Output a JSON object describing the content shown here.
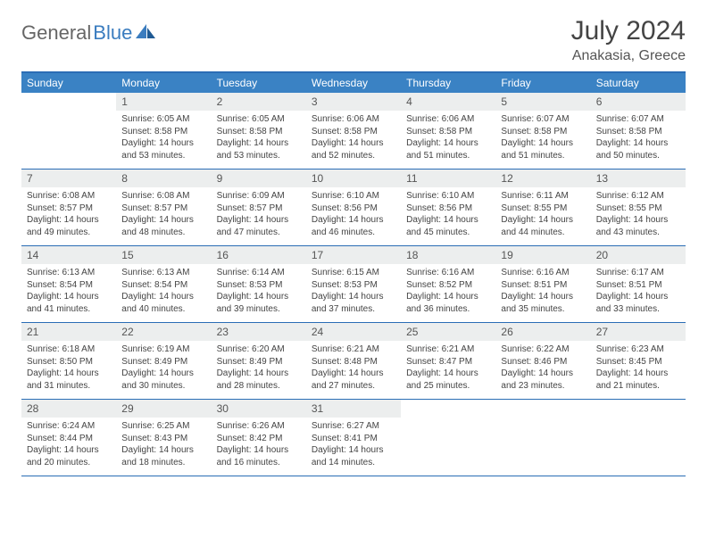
{
  "brand": {
    "part1": "General",
    "part2": "Blue"
  },
  "title": "July 2024",
  "location": "Anakasia, Greece",
  "colors": {
    "header_bg": "#3a82c4",
    "header_text": "#ffffff",
    "border": "#2a6db5",
    "daynum_bg": "#eceeee",
    "body_text": "#444444",
    "brand_gray": "#666666",
    "brand_blue": "#3a7cbf"
  },
  "day_names": [
    "Sunday",
    "Monday",
    "Tuesday",
    "Wednesday",
    "Thursday",
    "Friday",
    "Saturday"
  ],
  "calendar": {
    "first_weekday_index": 1,
    "days_in_month": 31
  },
  "days": {
    "1": {
      "sunrise": "6:05 AM",
      "sunset": "8:58 PM",
      "daylight": "14 hours and 53 minutes."
    },
    "2": {
      "sunrise": "6:05 AM",
      "sunset": "8:58 PM",
      "daylight": "14 hours and 53 minutes."
    },
    "3": {
      "sunrise": "6:06 AM",
      "sunset": "8:58 PM",
      "daylight": "14 hours and 52 minutes."
    },
    "4": {
      "sunrise": "6:06 AM",
      "sunset": "8:58 PM",
      "daylight": "14 hours and 51 minutes."
    },
    "5": {
      "sunrise": "6:07 AM",
      "sunset": "8:58 PM",
      "daylight": "14 hours and 51 minutes."
    },
    "6": {
      "sunrise": "6:07 AM",
      "sunset": "8:58 PM",
      "daylight": "14 hours and 50 minutes."
    },
    "7": {
      "sunrise": "6:08 AM",
      "sunset": "8:57 PM",
      "daylight": "14 hours and 49 minutes."
    },
    "8": {
      "sunrise": "6:08 AM",
      "sunset": "8:57 PM",
      "daylight": "14 hours and 48 minutes."
    },
    "9": {
      "sunrise": "6:09 AM",
      "sunset": "8:57 PM",
      "daylight": "14 hours and 47 minutes."
    },
    "10": {
      "sunrise": "6:10 AM",
      "sunset": "8:56 PM",
      "daylight": "14 hours and 46 minutes."
    },
    "11": {
      "sunrise": "6:10 AM",
      "sunset": "8:56 PM",
      "daylight": "14 hours and 45 minutes."
    },
    "12": {
      "sunrise": "6:11 AM",
      "sunset": "8:55 PM",
      "daylight": "14 hours and 44 minutes."
    },
    "13": {
      "sunrise": "6:12 AM",
      "sunset": "8:55 PM",
      "daylight": "14 hours and 43 minutes."
    },
    "14": {
      "sunrise": "6:13 AM",
      "sunset": "8:54 PM",
      "daylight": "14 hours and 41 minutes."
    },
    "15": {
      "sunrise": "6:13 AM",
      "sunset": "8:54 PM",
      "daylight": "14 hours and 40 minutes."
    },
    "16": {
      "sunrise": "6:14 AM",
      "sunset": "8:53 PM",
      "daylight": "14 hours and 39 minutes."
    },
    "17": {
      "sunrise": "6:15 AM",
      "sunset": "8:53 PM",
      "daylight": "14 hours and 37 minutes."
    },
    "18": {
      "sunrise": "6:16 AM",
      "sunset": "8:52 PM",
      "daylight": "14 hours and 36 minutes."
    },
    "19": {
      "sunrise": "6:16 AM",
      "sunset": "8:51 PM",
      "daylight": "14 hours and 35 minutes."
    },
    "20": {
      "sunrise": "6:17 AM",
      "sunset": "8:51 PM",
      "daylight": "14 hours and 33 minutes."
    },
    "21": {
      "sunrise": "6:18 AM",
      "sunset": "8:50 PM",
      "daylight": "14 hours and 31 minutes."
    },
    "22": {
      "sunrise": "6:19 AM",
      "sunset": "8:49 PM",
      "daylight": "14 hours and 30 minutes."
    },
    "23": {
      "sunrise": "6:20 AM",
      "sunset": "8:49 PM",
      "daylight": "14 hours and 28 minutes."
    },
    "24": {
      "sunrise": "6:21 AM",
      "sunset": "8:48 PM",
      "daylight": "14 hours and 27 minutes."
    },
    "25": {
      "sunrise": "6:21 AM",
      "sunset": "8:47 PM",
      "daylight": "14 hours and 25 minutes."
    },
    "26": {
      "sunrise": "6:22 AM",
      "sunset": "8:46 PM",
      "daylight": "14 hours and 23 minutes."
    },
    "27": {
      "sunrise": "6:23 AM",
      "sunset": "8:45 PM",
      "daylight": "14 hours and 21 minutes."
    },
    "28": {
      "sunrise": "6:24 AM",
      "sunset": "8:44 PM",
      "daylight": "14 hours and 20 minutes."
    },
    "29": {
      "sunrise": "6:25 AM",
      "sunset": "8:43 PM",
      "daylight": "14 hours and 18 minutes."
    },
    "30": {
      "sunrise": "6:26 AM",
      "sunset": "8:42 PM",
      "daylight": "14 hours and 16 minutes."
    },
    "31": {
      "sunrise": "6:27 AM",
      "sunset": "8:41 PM",
      "daylight": "14 hours and 14 minutes."
    }
  },
  "labels": {
    "sunrise": "Sunrise:",
    "sunset": "Sunset:",
    "daylight": "Daylight:"
  }
}
